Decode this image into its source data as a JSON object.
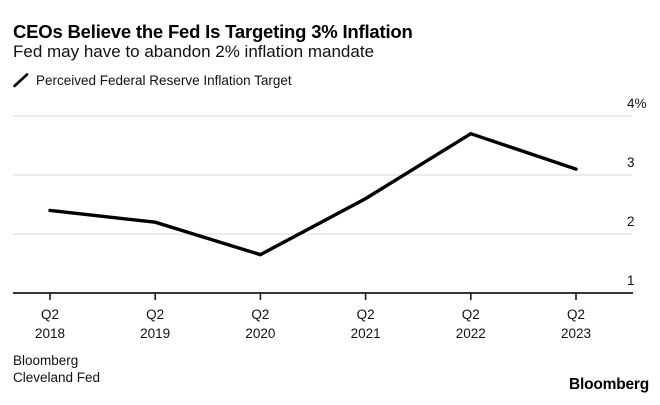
{
  "header": {
    "title": "CEOs Believe the Fed Is Targeting 3% Inflation",
    "subtitle": "Fed may have to abandon 2% inflation mandate"
  },
  "legend": {
    "series_label": "Perceived Federal Reserve Inflation Target",
    "marker_icon": "line-slash-icon",
    "marker_color": "#000000"
  },
  "chart_data": {
    "type": "line",
    "title": "CEOs Believe the Fed Is Targeting 3% Inflation",
    "subtitle": "Fed may have to abandon 2% inflation mandate",
    "categories": [
      {
        "quarter": "Q2",
        "year": "2018"
      },
      {
        "quarter": "Q2",
        "year": "2019"
      },
      {
        "quarter": "Q2",
        "year": "2020"
      },
      {
        "quarter": "Q2",
        "year": "2021"
      },
      {
        "quarter": "Q2",
        "year": "2022"
      },
      {
        "quarter": "Q2",
        "year": "2023"
      }
    ],
    "series": [
      {
        "name": "Perceived Federal Reserve Inflation Target",
        "values": [
          2.4,
          2.2,
          1.65,
          2.6,
          3.7,
          3.1
        ]
      }
    ],
    "xlabel": "",
    "ylabel": "",
    "ylim": [
      1,
      4
    ],
    "yticks": [
      {
        "value": 4,
        "label": "4%"
      },
      {
        "value": 3,
        "label": "3"
      },
      {
        "value": 2,
        "label": "2"
      },
      {
        "value": 1,
        "label": "1"
      }
    ],
    "grid": "horizontal",
    "legend_position": "top-left",
    "line_color": "#000000",
    "gridline_color": "#d9d9d9",
    "axis_color": "#1a1a1a",
    "label_color": "#111111"
  },
  "source": {
    "line1": "Bloomberg",
    "line2": "Cleveland Fed"
  },
  "branding": {
    "logo": "Bloomberg"
  }
}
